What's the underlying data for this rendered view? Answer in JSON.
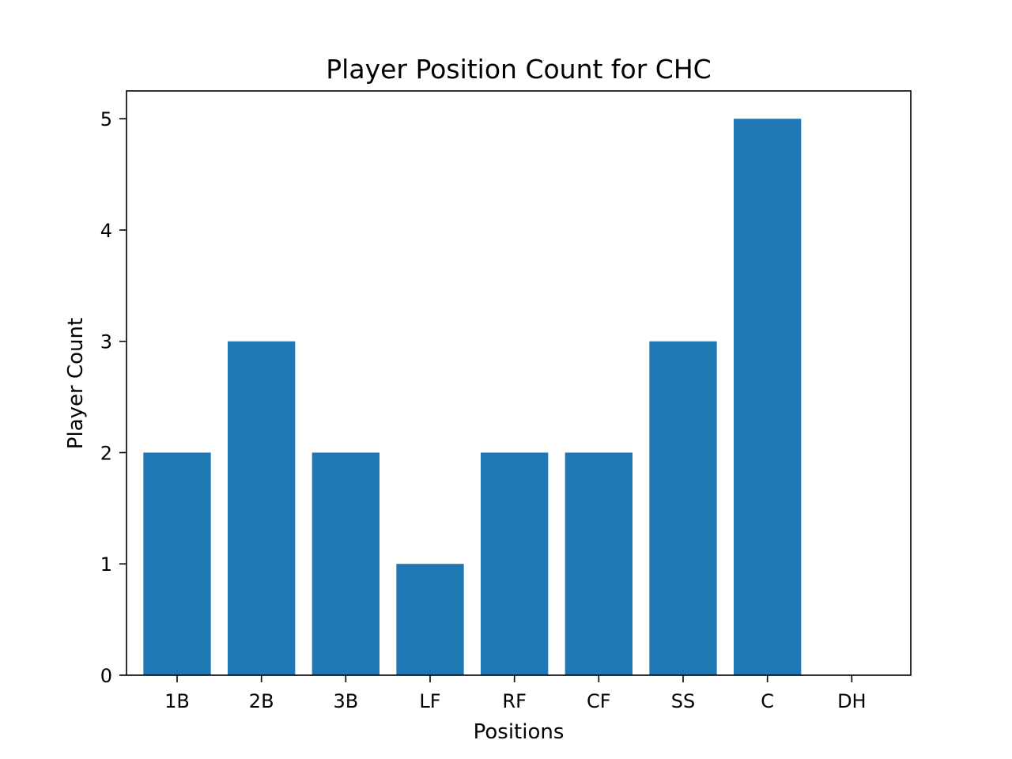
{
  "chart_data": {
    "type": "bar",
    "title": "Player Position Count for CHC",
    "xlabel": "Positions",
    "ylabel": "Player Count",
    "categories": [
      "1B",
      "2B",
      "3B",
      "LF",
      "RF",
      "CF",
      "SS",
      "C",
      "DH"
    ],
    "values": [
      2,
      3,
      2,
      1,
      2,
      2,
      3,
      5,
      0
    ],
    "yticks": [
      "0",
      "1",
      "2",
      "3",
      "4",
      "5"
    ],
    "ylim": [
      0,
      5.25
    ],
    "grid": false,
    "legend": "none",
    "bar_color": "#1f77b4"
  }
}
